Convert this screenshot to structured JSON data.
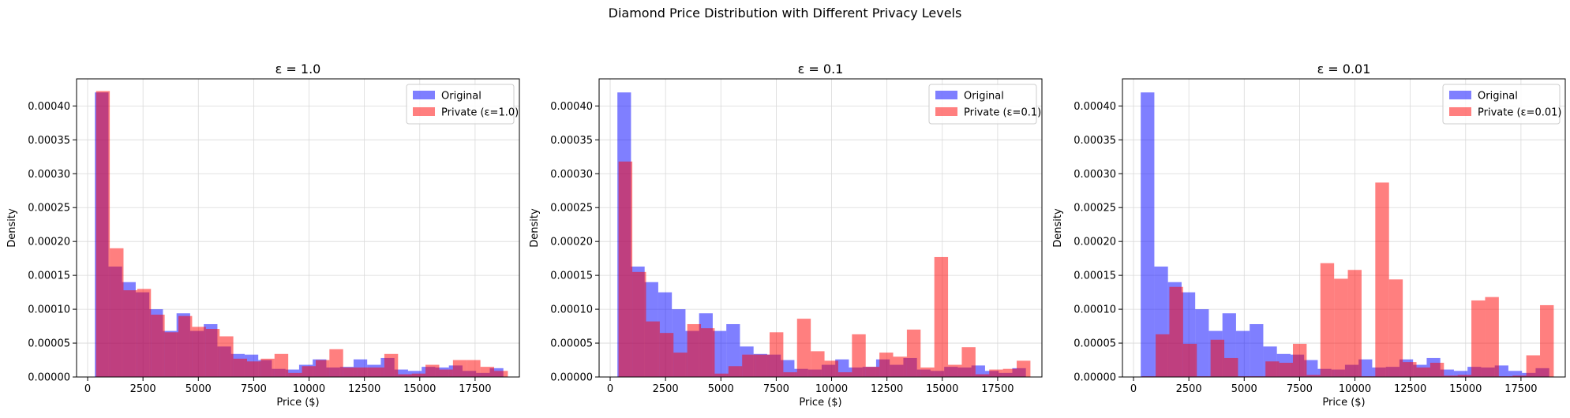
{
  "figure": {
    "title": "Diamond Price Distribution with Different Privacy Levels"
  },
  "colors": {
    "original": "#0000ff",
    "private": "#ff0000",
    "bar_opacity": 0.5,
    "grid": "#d9d9d9"
  },
  "chart_data": [
    {
      "type": "histogram",
      "title": "ε = 1.0",
      "xlabel": "Price ($)",
      "ylabel": "Density",
      "xlim": [
        -500,
        19500
      ],
      "ylim": [
        0,
        0.00044
      ],
      "xticks": [
        0,
        2500,
        5000,
        7500,
        10000,
        12500,
        15000,
        17500
      ],
      "xtick_labels": [
        "0",
        "2500",
        "5000",
        "7500",
        "10000",
        "12500",
        "15000",
        "17500"
      ],
      "yticks": [
        0,
        5e-05,
        0.0001,
        0.00015,
        0.0002,
        0.00025,
        0.0003,
        0.00035,
        0.0004
      ],
      "ytick_labels": [
        "0.00000",
        "0.00005",
        "0.00010",
        "0.00015",
        "0.00020",
        "0.00025",
        "0.00030",
        "0.00035",
        "0.00040"
      ],
      "grid": true,
      "legend_position": "top-right",
      "series": [
        {
          "name": "Original",
          "bin_start": 326,
          "bin_width": 615,
          "values": [
            0.00042,
            0.000163,
            0.00014,
            0.000125,
            0.0001,
            6.8e-05,
            9.4e-05,
            6.8e-05,
            7.8e-05,
            4.5e-05,
            3.4e-05,
            3.3e-05,
            2.5e-05,
            1.2e-05,
            1.1e-05,
            1.8e-05,
            2.6e-05,
            1.4e-05,
            1.5e-05,
            2.6e-05,
            1.8e-05,
            2.8e-05,
            1.1e-05,
            9e-06,
            1.5e-05,
            1.4e-05,
            1.7e-05,
            9e-06,
            6e-06,
            1.3e-05
          ]
        },
        {
          "name": "Private (ε=1.0)",
          "bin_start": 380,
          "bin_width": 620,
          "values": [
            0.000422,
            0.00019,
            0.000128,
            0.00013,
            9.2e-05,
            6.6e-05,
            9e-05,
            7.4e-05,
            7.1e-05,
            6e-05,
            2.7e-05,
            2.3e-05,
            2.7e-05,
            3.4e-05,
            6e-06,
            1.6e-05,
            2.5e-05,
            4.1e-05,
            1.4e-05,
            1.4e-05,
            1.4e-05,
            3.4e-05,
            4e-06,
            5e-06,
            1.8e-05,
            1.1e-05,
            2.5e-05,
            2.5e-05,
            1.5e-05,
            9e-06
          ]
        }
      ]
    },
    {
      "type": "histogram",
      "title": "ε = 0.1",
      "xlabel": "Price ($)",
      "ylabel": "Density",
      "xlim": [
        -500,
        19500
      ],
      "ylim": [
        0,
        0.00044
      ],
      "xticks": [
        0,
        2500,
        5000,
        7500,
        10000,
        12500,
        15000,
        17500
      ],
      "xtick_labels": [
        "0",
        "2500",
        "5000",
        "7500",
        "10000",
        "12500",
        "15000",
        "17500"
      ],
      "yticks": [
        0,
        5e-05,
        0.0001,
        0.00015,
        0.0002,
        0.00025,
        0.0003,
        0.00035,
        0.0004
      ],
      "ytick_labels": [
        "0.00000",
        "0.00005",
        "0.00010",
        "0.00015",
        "0.00020",
        "0.00025",
        "0.00030",
        "0.00035",
        "0.00040"
      ],
      "grid": true,
      "legend_position": "top-right",
      "series": [
        {
          "name": "Original",
          "bin_start": 326,
          "bin_width": 615,
          "values": [
            0.00042,
            0.000163,
            0.00014,
            0.000125,
            0.0001,
            6.8e-05,
            9.4e-05,
            6.8e-05,
            7.8e-05,
            4.5e-05,
            3.4e-05,
            3.3e-05,
            2.5e-05,
            1.2e-05,
            1.1e-05,
            1.8e-05,
            2.6e-05,
            1.4e-05,
            1.5e-05,
            2.6e-05,
            1.8e-05,
            2.8e-05,
            1.1e-05,
            9e-06,
            1.5e-05,
            1.4e-05,
            1.7e-05,
            9e-06,
            6e-06,
            1.3e-05
          ]
        },
        {
          "name": "Private (ε=0.1)",
          "bin_start": 380,
          "bin_width": 620,
          "values": [
            0.000318,
            0.000155,
            8.2e-05,
            6.5e-05,
            3.6e-05,
            7.8e-05,
            7.2e-05,
            5e-06,
            1.6e-05,
            3.3e-05,
            3.3e-05,
            6.6e-05,
            7e-06,
            8.6e-05,
            3.8e-05,
            2.4e-05,
            7e-06,
            6.3e-05,
            1.5e-05,
            3.6e-05,
            3e-05,
            7e-05,
            1.4e-05,
            0.000177,
            1.8e-05,
            4.4e-05,
            4e-06,
            1.1e-05,
            1.2e-05,
            2.4e-05
          ]
        }
      ]
    },
    {
      "type": "histogram",
      "title": "ε = 0.01",
      "xlabel": "Price ($)",
      "ylabel": "Density",
      "xlim": [
        -500,
        19500
      ],
      "ylim": [
        0,
        0.00044
      ],
      "xticks": [
        0,
        2500,
        5000,
        7500,
        10000,
        12500,
        15000,
        17500
      ],
      "xtick_labels": [
        "0",
        "2500",
        "5000",
        "7500",
        "10000",
        "12500",
        "15000",
        "17500"
      ],
      "yticks": [
        0,
        5e-05,
        0.0001,
        0.00015,
        0.0002,
        0.00025,
        0.0003,
        0.00035,
        0.0004
      ],
      "ytick_labels": [
        "0.00000",
        "0.00005",
        "0.00010",
        "0.00015",
        "0.00020",
        "0.00025",
        "0.00030",
        "0.00035",
        "0.00040"
      ],
      "grid": true,
      "legend_position": "top-right",
      "series": [
        {
          "name": "Original",
          "bin_start": 326,
          "bin_width": 615,
          "values": [
            0.00042,
            0.000163,
            0.00014,
            0.000125,
            0.0001,
            6.8e-05,
            9.4e-05,
            6.8e-05,
            7.8e-05,
            4.5e-05,
            3.4e-05,
            3.3e-05,
            2.5e-05,
            1.2e-05,
            1.1e-05,
            1.8e-05,
            2.6e-05,
            1.4e-05,
            1.5e-05,
            2.6e-05,
            1.8e-05,
            2.8e-05,
            1.1e-05,
            9e-06,
            1.5e-05,
            1.4e-05,
            1.7e-05,
            9e-06,
            6e-06,
            1.3e-05
          ]
        },
        {
          "name": "Private (ε=0.01)",
          "bin_start": 380,
          "bin_width": 620,
          "values": [
            1e-06,
            6.3e-05,
            0.000133,
            4.9e-05,
            1e-06,
            5.5e-05,
            2.8e-05,
            1e-06,
            1e-06,
            2.3e-05,
            2.1e-05,
            4.9e-05,
            3e-06,
            0.000168,
            0.000145,
            0.000158,
            1e-06,
            0.000287,
            0.000144,
            2.2e-05,
            1.4e-05,
            2.1e-05,
            2e-06,
            3e-06,
            0.000113,
            0.000118,
            1e-06,
            2e-06,
            3.2e-05,
            0.000106
          ]
        }
      ]
    }
  ]
}
